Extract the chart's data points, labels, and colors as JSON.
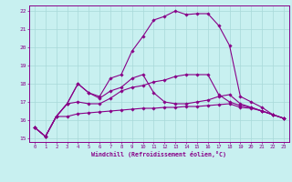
{
  "xlabel": "Windchill (Refroidissement éolien,°C)",
  "background_color": "#c8f0f0",
  "grid_color": "#a8d8d8",
  "line_color": "#880088",
  "ylim": [
    14.8,
    22.3
  ],
  "xlim": [
    -0.5,
    23.5
  ],
  "yticks": [
    15,
    16,
    17,
    18,
    19,
    20,
    21,
    22
  ],
  "x_ticks": [
    0,
    1,
    2,
    3,
    4,
    5,
    6,
    7,
    8,
    9,
    10,
    11,
    12,
    13,
    14,
    15,
    16,
    17,
    18,
    19,
    20,
    21,
    22,
    23
  ],
  "line1_main": [
    15.6,
    15.1,
    16.2,
    16.9,
    18.0,
    17.5,
    17.3,
    18.3,
    18.5,
    19.8,
    20.6,
    21.5,
    21.7,
    22.0,
    21.8,
    21.85,
    21.85,
    21.2,
    20.1,
    17.3,
    17.0,
    16.7,
    16.3,
    16.1
  ],
  "line2_mid": [
    15.6,
    15.1,
    16.2,
    16.9,
    18.0,
    17.5,
    17.2,
    17.6,
    17.8,
    18.3,
    18.5,
    17.5,
    17.0,
    16.9,
    16.9,
    17.0,
    17.1,
    17.3,
    17.4,
    16.9,
    16.7,
    16.5,
    16.3,
    16.1
  ],
  "line3_upper": [
    15.6,
    15.1,
    16.2,
    16.9,
    17.0,
    16.9,
    16.9,
    17.2,
    17.6,
    17.8,
    17.9,
    18.1,
    18.2,
    18.4,
    18.5,
    18.5,
    18.5,
    17.4,
    17.0,
    16.8,
    16.7,
    16.5,
    16.3,
    16.1
  ],
  "line4_lower": [
    15.6,
    15.1,
    16.2,
    16.2,
    16.35,
    16.4,
    16.45,
    16.5,
    16.55,
    16.6,
    16.65,
    16.65,
    16.7,
    16.7,
    16.75,
    16.75,
    16.8,
    16.85,
    16.9,
    16.7,
    16.65,
    16.5,
    16.3,
    16.1
  ]
}
